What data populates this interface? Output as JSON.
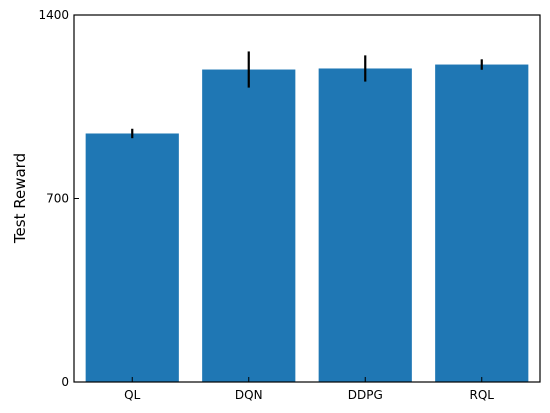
{
  "chart_data": {
    "type": "bar",
    "categories": [
      "QL",
      "DQN",
      "DDPG",
      "RQL"
    ],
    "values": [
      948,
      1192,
      1196,
      1211
    ],
    "errors": [
      18,
      69,
      50,
      20
    ],
    "title": "",
    "xlabel": "",
    "ylabel": "Test Reward",
    "ylim": [
      0,
      1400
    ],
    "yticks": [
      0,
      700,
      1400
    ],
    "grid": false,
    "bar_color": "#1f77b4",
    "error_color": "#000000"
  }
}
